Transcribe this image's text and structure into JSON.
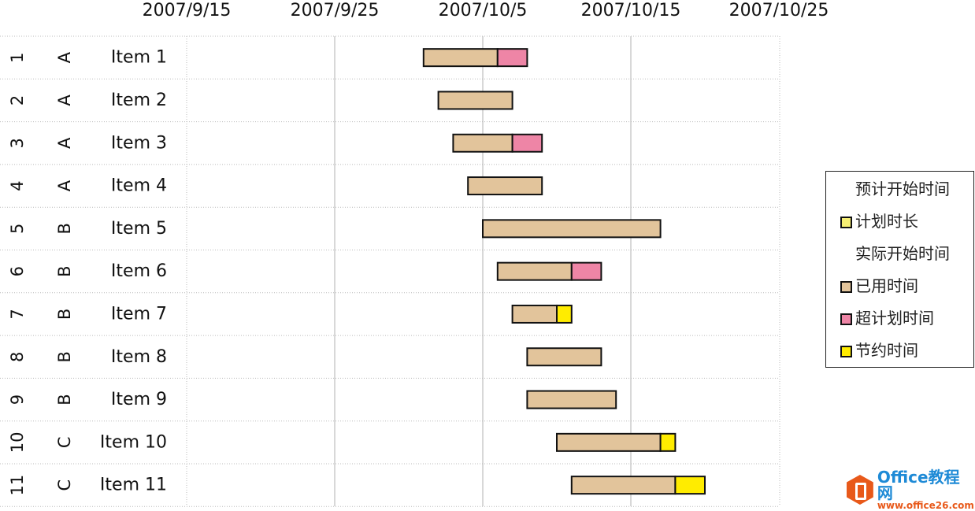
{
  "chart_data": {
    "type": "gantt",
    "x_ticks": [
      "2007/9/15",
      "2007/9/25",
      "2007/10/5",
      "2007/10/15",
      "2007/10/25"
    ],
    "x_start": "2007/9/15",
    "x_end": "2007/10/25",
    "rows": [
      {
        "no": "1",
        "group": "A",
        "name": "Item 1",
        "start_day": 16,
        "used": 5,
        "over": 2,
        "saved": 0
      },
      {
        "no": "2",
        "group": "A",
        "name": "Item 2",
        "start_day": 17,
        "used": 5,
        "over": 0,
        "saved": 0
      },
      {
        "no": "3",
        "group": "A",
        "name": "Item 3",
        "start_day": 18,
        "used": 4,
        "over": 2,
        "saved": 0
      },
      {
        "no": "4",
        "group": "A",
        "name": "Item 4",
        "start_day": 19,
        "used": 5,
        "over": 0,
        "saved": 0
      },
      {
        "no": "5",
        "group": "B",
        "name": "Item 5",
        "start_day": 20,
        "used": 12,
        "over": 0,
        "saved": 0
      },
      {
        "no": "6",
        "group": "B",
        "name": "Item 6",
        "start_day": 21,
        "used": 5,
        "over": 2,
        "saved": 0
      },
      {
        "no": "7",
        "group": "B",
        "name": "Item 7",
        "start_day": 22,
        "used": 3,
        "over": 0,
        "saved": 1
      },
      {
        "no": "8",
        "group": "B",
        "name": "Item 8",
        "start_day": 23,
        "used": 5,
        "over": 0,
        "saved": 0
      },
      {
        "no": "9",
        "group": "B",
        "name": "Item 9",
        "start_day": 23,
        "used": 6,
        "over": 0,
        "saved": 0
      },
      {
        "no": "10",
        "group": "C",
        "name": "Item 10",
        "start_day": 25,
        "used": 7,
        "over": 0,
        "saved": 1
      },
      {
        "no": "11",
        "group": "C",
        "name": "Item 11",
        "start_day": 26,
        "used": 7,
        "over": 0,
        "saved": 2
      }
    ],
    "legend": [
      {
        "label": "预计开始时间",
        "color": null
      },
      {
        "label": "计划时长",
        "color": "#f6ef74"
      },
      {
        "label": "实际开始时间",
        "color": null
      },
      {
        "label": "已用时间",
        "color": "#e2c49b"
      },
      {
        "label": "超计划时间",
        "color": "#ee85a6"
      },
      {
        "label": "节约时间",
        "color": "#ffec00"
      }
    ],
    "legend_position": "right"
  },
  "watermark": {
    "title": "Office教程网",
    "url": "www.office26.com"
  }
}
